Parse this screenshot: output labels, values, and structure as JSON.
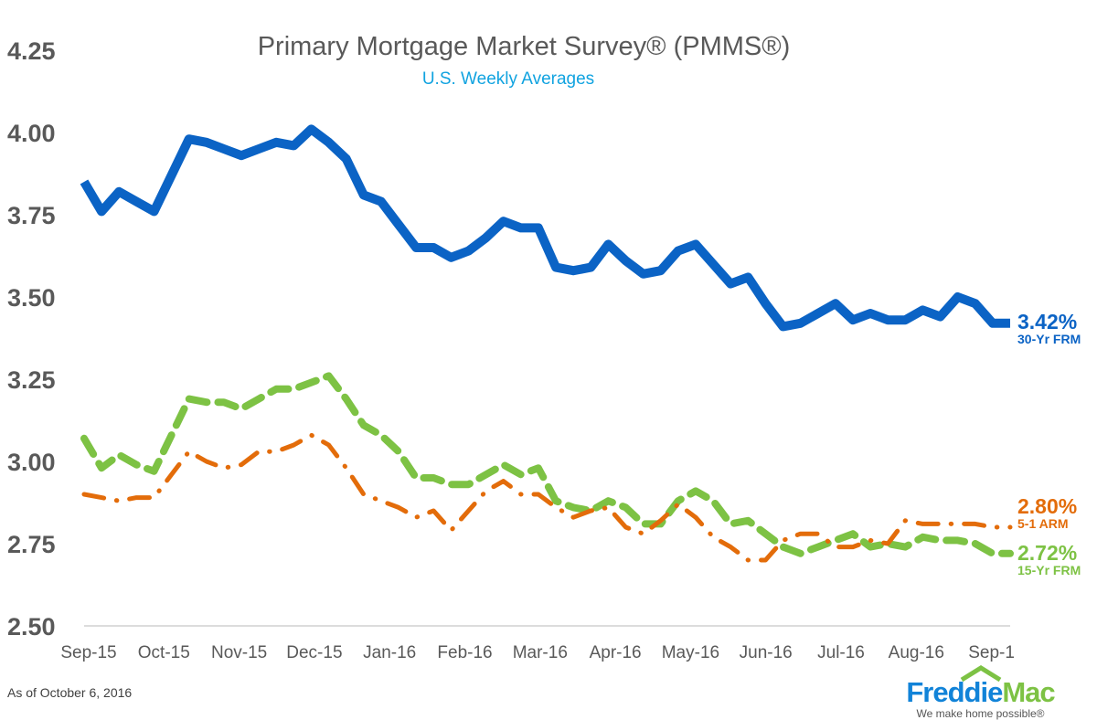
{
  "chart_data": {
    "type": "line",
    "title": "Primary Mortgage Market Survey® (PMMS®)",
    "subtitle": "U.S. Weekly Averages",
    "xlabel": "",
    "ylabel": "",
    "ylim": [
      2.5,
      4.25
    ],
    "yticks": [
      "2.50",
      "2.75",
      "3.00",
      "3.25",
      "3.50",
      "3.75",
      "4.00",
      "4.25"
    ],
    "xtick_labels": [
      "Sep-15",
      "Oct-15",
      "Nov-15",
      "Dec-15",
      "Jan-16",
      "Feb-16",
      "Mar-16",
      "Apr-16",
      "May-16",
      "Jun-16",
      "Jul-16",
      "Aug-16",
      "Sep-1"
    ],
    "grid": false,
    "series": [
      {
        "name": "30-Yr FRM",
        "end_label": "3.42%",
        "color": "#0b63c5",
        "style": "solid",
        "values": [
          3.85,
          3.76,
          3.82,
          3.79,
          3.76,
          3.87,
          3.98,
          3.97,
          3.95,
          3.93,
          3.95,
          3.97,
          3.96,
          4.01,
          3.97,
          3.92,
          3.81,
          3.79,
          3.72,
          3.65,
          3.65,
          3.62,
          3.64,
          3.68,
          3.73,
          3.71,
          3.71,
          3.59,
          3.58,
          3.59,
          3.66,
          3.61,
          3.57,
          3.58,
          3.64,
          3.66,
          3.6,
          3.54,
          3.56,
          3.48,
          3.41,
          3.42,
          3.45,
          3.48,
          3.43,
          3.45,
          3.43,
          3.43,
          3.46,
          3.44,
          3.5,
          3.48,
          3.42,
          3.42
        ]
      },
      {
        "name": "5-1 ARM",
        "end_label": "2.80%",
        "color": "#e36c0a",
        "style": "dash-dot",
        "values": [
          2.9,
          2.89,
          2.88,
          2.89,
          2.89,
          2.96,
          3.03,
          3.0,
          2.98,
          2.99,
          3.03,
          3.03,
          3.05,
          3.08,
          3.05,
          2.98,
          2.9,
          2.88,
          2.86,
          2.83,
          2.85,
          2.79,
          2.85,
          2.91,
          2.94,
          2.9,
          2.9,
          2.86,
          2.83,
          2.85,
          2.86,
          2.8,
          2.78,
          2.82,
          2.87,
          2.83,
          2.77,
          2.74,
          2.7,
          2.7,
          2.76,
          2.78,
          2.78,
          2.74,
          2.74,
          2.76,
          2.75,
          2.82,
          2.81,
          2.81,
          2.81,
          2.81,
          2.8,
          2.8
        ]
      },
      {
        "name": "15-Yr FRM",
        "end_label": "2.72%",
        "color": "#7dc244",
        "style": "dashed",
        "values": [
          3.07,
          2.98,
          3.02,
          2.99,
          2.97,
          3.08,
          3.19,
          3.18,
          3.18,
          3.16,
          3.19,
          3.22,
          3.22,
          3.24,
          3.26,
          3.19,
          3.11,
          3.08,
          3.03,
          2.95,
          2.95,
          2.93,
          2.93,
          2.96,
          2.99,
          2.96,
          2.98,
          2.88,
          2.86,
          2.85,
          2.88,
          2.86,
          2.81,
          2.81,
          2.88,
          2.91,
          2.88,
          2.81,
          2.82,
          2.78,
          2.74,
          2.72,
          2.74,
          2.76,
          2.78,
          2.74,
          2.75,
          2.74,
          2.77,
          2.76,
          2.76,
          2.75,
          2.72,
          2.72
        ]
      }
    ]
  },
  "footnote": "As of October 6, 2016",
  "logo": {
    "word_a": "Freddie",
    "word_b": "Mac",
    "tagline": "We make home possible®"
  }
}
